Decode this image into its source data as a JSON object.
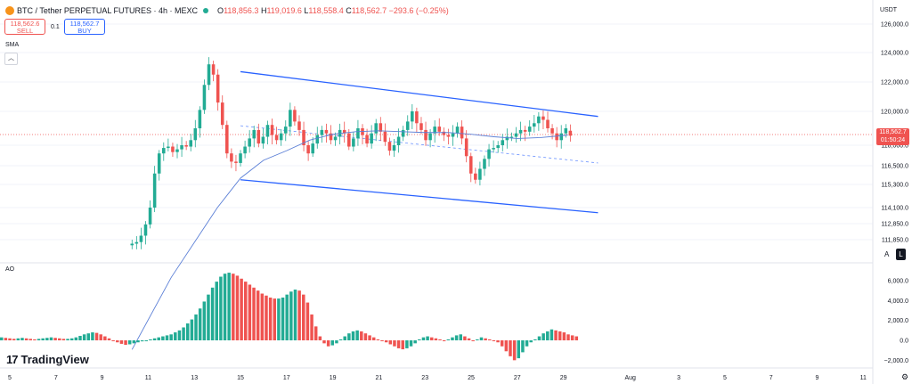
{
  "header": {
    "symbol": "BTC / Tether PERPETUAL FUTURES · 4h · MEXC",
    "o_label": "O",
    "o_value": "118,856.3",
    "h_label": "H",
    "h_value": "119,019.6",
    "l_label": "L",
    "l_value": "118,558.4",
    "c_label": "C",
    "c_value": "118,562.7",
    "change": "−293.6 (−0.25%)",
    "status_color": "#22ab94"
  },
  "trade": {
    "sell_price": "118,562.6",
    "sell_label": "SELL",
    "spread": "0.1",
    "buy_price": "118,562.7",
    "buy_label": "BUY"
  },
  "indicators": {
    "sma_label": "SMA",
    "collapse_icon": "chevron-up-icon",
    "ao_label": "AO"
  },
  "current_price": {
    "value": "118,562.7",
    "countdown": "01:50:24",
    "color": "#ef5350"
  },
  "currency": "USDT",
  "buttons": {
    "auto": "A",
    "log": "L",
    "settings_icon": "gear-icon"
  },
  "brand": {
    "mark": "17",
    "name": "TradingView"
  },
  "colors": {
    "up": "#22ab94",
    "down": "#ef5350",
    "channel": "#2962ff",
    "sma": "#5b7fd6"
  },
  "chart_data": [
    {
      "type": "candlestick",
      "title": "BTC / Tether PERPETUAL FUTURES · 4h · MEXC",
      "y_ticks": [
        111850,
        112850,
        114100,
        115300,
        116500,
        118000,
        120000,
        122000,
        124000,
        126000
      ],
      "y_tick_labels": [
        "111,850.0",
        "112,850.0",
        "114,100.0",
        "115,300.0",
        "116,500.0",
        "118,000.0",
        "120,000.0",
        "122,000.0",
        "124,000.0",
        "126,000.0"
      ],
      "x_tick_labels": [
        "5",
        "7",
        "9",
        "11",
        "13",
        "15",
        "17",
        "19",
        "21",
        "23",
        "25",
        "27",
        "29",
        "Aug",
        "3",
        "5",
        "7",
        "9",
        "11"
      ],
      "channel": {
        "upper": [
          [
            15,
            122700
          ],
          [
            30.5,
            119700
          ]
        ],
        "lower": [
          [
            15,
            115600
          ],
          [
            30.5,
            113700
          ]
        ],
        "mid_dashed": [
          [
            15,
            119150
          ],
          [
            30.5,
            116700
          ]
        ]
      },
      "sma_points": [
        [
          10.3,
          105000
        ],
        [
          12,
          109500
        ],
        [
          14,
          114100
        ],
        [
          15,
          115700
        ],
        [
          16,
          116900
        ],
        [
          17,
          117600
        ],
        [
          18,
          118300
        ],
        [
          19,
          118650
        ],
        [
          20,
          118800
        ],
        [
          21,
          118850
        ],
        [
          22,
          118800
        ],
        [
          23,
          118750
        ],
        [
          24,
          118750
        ],
        [
          25,
          118650
        ],
        [
          26,
          118500
        ],
        [
          27,
          118400
        ],
        [
          28,
          118450
        ],
        [
          29.2,
          118600
        ]
      ],
      "candles_close": [
        111600,
        111700,
        112100,
        112800,
        114100,
        116000,
        117400,
        117800,
        117900,
        117500,
        117700,
        118000,
        117900,
        118300,
        119000,
        120100,
        121800,
        123200,
        122500,
        120600,
        119200,
        117400,
        116800,
        116700,
        117400,
        117900,
        118400,
        118900,
        118100,
        118500,
        119200,
        118600,
        118300,
        118700,
        119100,
        120100,
        119400,
        118900,
        118000,
        117400,
        118100,
        118600,
        118900,
        118700,
        118300,
        118500,
        118900,
        118700,
        117900,
        118400,
        119000,
        118600,
        118100,
        118700,
        119300,
        118800,
        118200,
        117600,
        118000,
        118500,
        118900,
        119400,
        120000,
        119300,
        118900,
        118300,
        118700,
        119100,
        118800,
        118600,
        118500,
        118700,
        119100,
        118400,
        117200,
        116000,
        115600,
        116300,
        117000,
        117700,
        117800,
        118000,
        118300,
        118500,
        118500,
        118700,
        118900,
        118800,
        119100,
        119300,
        119700,
        119500,
        119000,
        118700,
        118300,
        118700,
        119000,
        118562.7
      ],
      "candles_open": [
        111500,
        111600,
        111700,
        112100,
        112800,
        114100,
        116000,
        117400,
        117800,
        117900,
        117500,
        117700,
        118000,
        117900,
        118300,
        119000,
        120100,
        121800,
        123200,
        122500,
        120600,
        119200,
        117400,
        116800,
        116700,
        117400,
        117900,
        118400,
        118900,
        118100,
        118500,
        119200,
        118600,
        118300,
        118700,
        119100,
        120100,
        119400,
        118900,
        118000,
        117400,
        118100,
        118600,
        118900,
        118700,
        118300,
        118500,
        118900,
        118700,
        117900,
        118400,
        119000,
        118600,
        118100,
        118700,
        119300,
        118800,
        118200,
        117600,
        118000,
        118500,
        118900,
        119400,
        120000,
        119300,
        118900,
        118300,
        118700,
        119100,
        118800,
        118600,
        118500,
        118700,
        119100,
        118400,
        117200,
        116000,
        115600,
        116300,
        117000,
        117700,
        117800,
        118000,
        118300,
        118500,
        118500,
        118700,
        118900,
        118800,
        119100,
        119300,
        119700,
        119500,
        119000,
        118700,
        118300,
        118700,
        118856.3
      ]
    },
    {
      "type": "bar",
      "title": "AO",
      "y_ticks": [
        -2000,
        0,
        2000,
        4000,
        6000
      ],
      "y_tick_labels": [
        "−2,000.0",
        "0.0",
        "2,000.0",
        "4,000.0",
        "6,000.0"
      ],
      "values": [
        300,
        250,
        200,
        150,
        200,
        250,
        200,
        150,
        100,
        150,
        200,
        250,
        300,
        250,
        200,
        150,
        150,
        200,
        300,
        450,
        600,
        700,
        800,
        750,
        600,
        400,
        200,
        0,
        -200,
        -350,
        -450,
        -400,
        -300,
        -200,
        -100,
        0,
        100,
        200,
        300,
        400,
        500,
        600,
        800,
        1000,
        1300,
        1700,
        2100,
        2600,
        3200,
        3900,
        4600,
        5300,
        5900,
        6400,
        6700,
        6800,
        6700,
        6500,
        6200,
        5900,
        5600,
        5300,
        5000,
        4700,
        4500,
        4300,
        4200,
        4200,
        4300,
        4600,
        4900,
        5100,
        5000,
        4600,
        3800,
        2600,
        1400,
        400,
        -300,
        -600,
        -500,
        -300,
        100,
        400,
        700,
        900,
        1000,
        900,
        700,
        500,
        300,
        100,
        0,
        -200,
        -400,
        -600,
        -800,
        -900,
        -800,
        -600,
        -300,
        100,
        300,
        400,
        300,
        200,
        100,
        0,
        100,
        300,
        500,
        600,
        400,
        200,
        0,
        100,
        300,
        200,
        100,
        0,
        -200,
        -600,
        -1100,
        -1600,
        -2000,
        -1800,
        -1200,
        -600,
        -200,
        100,
        400,
        700,
        900,
        1100,
        1000,
        900,
        800,
        600,
        500,
        400
      ]
    }
  ]
}
